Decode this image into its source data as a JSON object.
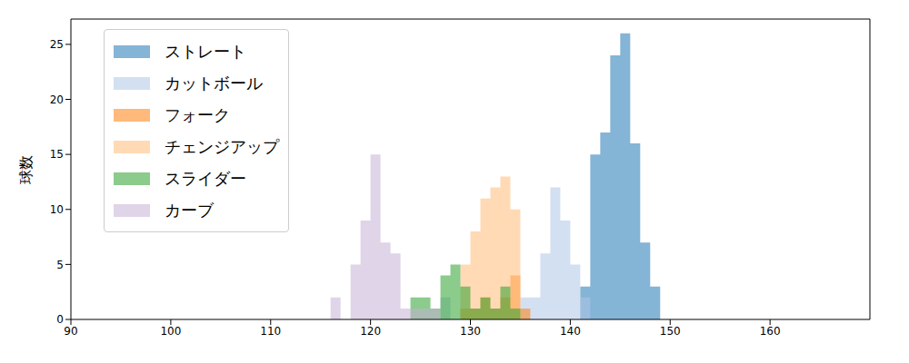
{
  "chart_data": {
    "type": "histogram",
    "y_label": "球数",
    "bins": [
      116,
      117,
      118,
      119,
      120,
      121,
      122,
      123,
      124,
      125,
      126,
      127,
      128,
      129,
      130,
      131,
      132,
      133,
      134,
      135,
      136,
      137,
      138,
      139,
      140,
      141,
      142,
      143,
      144,
      145,
      146,
      147,
      148,
      149
    ],
    "series": [
      {
        "name": "ストレート",
        "color": "#1f77b4",
        "values": [
          0,
          0,
          0,
          0,
          0,
          0,
          0,
          0,
          0,
          0,
          0,
          0,
          0,
          0,
          0,
          0,
          0,
          0,
          0,
          0,
          0,
          0,
          0,
          0,
          0,
          3,
          15,
          17,
          24,
          26,
          16,
          7,
          3
        ]
      },
      {
        "name": "カットボール",
        "color": "#aec7e8",
        "values": [
          0,
          0,
          0,
          0,
          0,
          0,
          0,
          0,
          0,
          0,
          0,
          2,
          0,
          0,
          0,
          0,
          0,
          0,
          0,
          2,
          2,
          6,
          12,
          9,
          5,
          2,
          0,
          0,
          0,
          0,
          0,
          0,
          0
        ]
      },
      {
        "name": "フォーク",
        "color": "#ff7f0e",
        "values": [
          0,
          0,
          0,
          0,
          0,
          0,
          0,
          0,
          0,
          0,
          0,
          0,
          0,
          1,
          1,
          2,
          1,
          2,
          4,
          1,
          0,
          0,
          0,
          0,
          0,
          0,
          0,
          0,
          0,
          0,
          0,
          0,
          0
        ]
      },
      {
        "name": "チェンジアップ",
        "color": "#ffbb78",
        "values": [
          0,
          0,
          0,
          0,
          0,
          0,
          0,
          0,
          0,
          0,
          0,
          0,
          0,
          5,
          8,
          11,
          12,
          13,
          10,
          0,
          0,
          0,
          0,
          0,
          0,
          0,
          0,
          0,
          0,
          0,
          0,
          0,
          0
        ]
      },
      {
        "name": "スライダー",
        "color": "#2ca02c",
        "values": [
          0,
          0,
          0,
          0,
          0,
          0,
          0,
          0,
          2,
          2,
          1,
          4,
          5,
          3,
          1,
          2,
          1,
          3,
          1,
          0,
          0,
          0,
          0,
          0,
          0,
          0,
          0,
          0,
          0,
          0,
          0,
          0,
          0
        ]
      },
      {
        "name": "カーブ",
        "color": "#c5b0d5",
        "values": [
          2,
          0,
          5,
          9,
          15,
          7,
          6,
          1,
          1,
          1,
          1,
          0,
          0,
          0,
          0,
          0,
          0,
          0,
          0,
          0,
          0,
          0,
          0,
          0,
          0,
          0,
          0,
          0,
          0,
          0,
          0,
          0,
          0
        ]
      }
    ],
    "xlim": [
      90,
      170
    ],
    "xticks": [
      90,
      100,
      110,
      120,
      130,
      140,
      150,
      160
    ],
    "ylim": [
      0,
      27.3
    ],
    "yticks": [
      0,
      5,
      10,
      15,
      20,
      25
    ],
    "grid": false,
    "legend": "upper left"
  }
}
